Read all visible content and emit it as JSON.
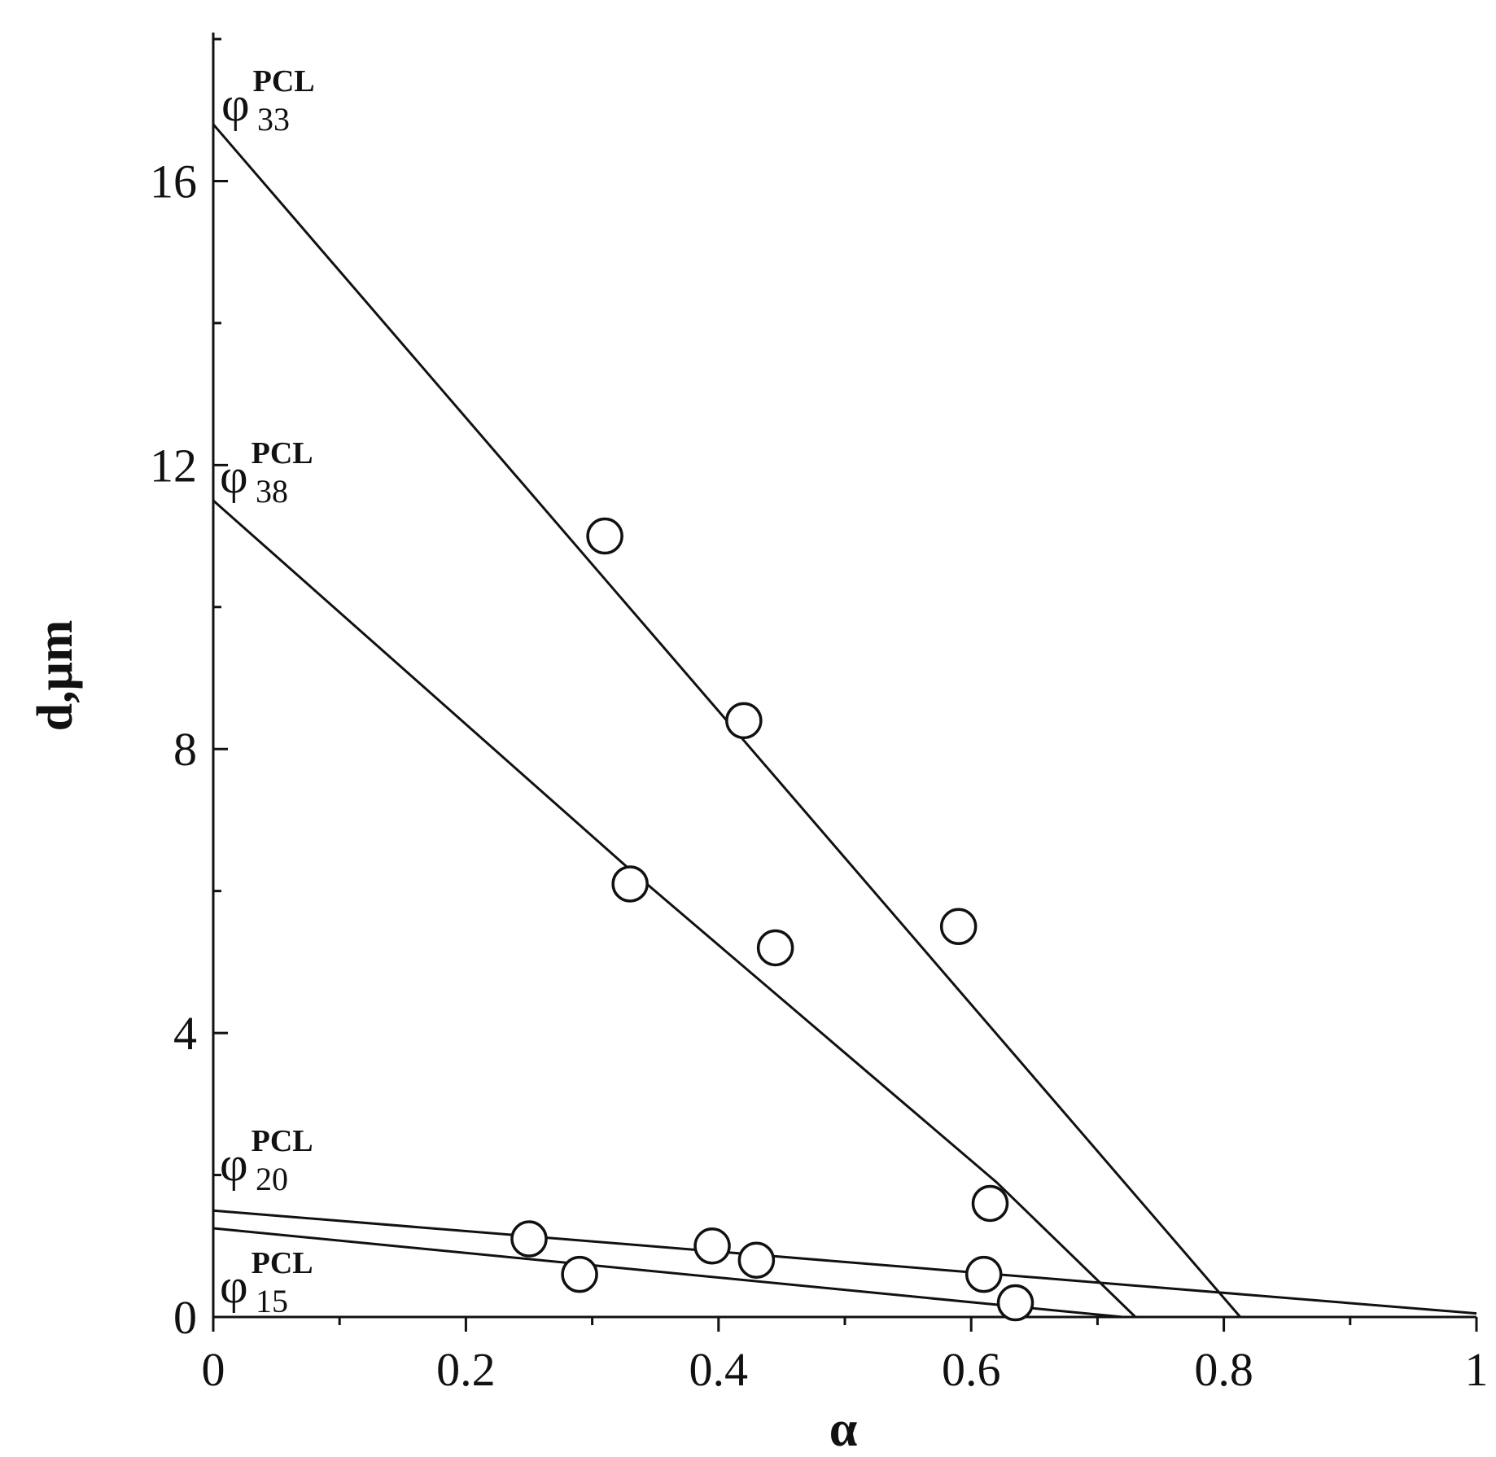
{
  "chart_data": {
    "type": "scatter",
    "xlabel": "α",
    "ylabel": "d,μm",
    "xlim": [
      0,
      1
    ],
    "ylim": [
      0,
      18
    ],
    "x_ticks": [
      0,
      0.2,
      0.4,
      0.6,
      0.8,
      1
    ],
    "x_tick_labels": [
      "0",
      "0.2",
      "0.4",
      "0.6",
      "0.8",
      "1"
    ],
    "y_ticks": [
      0,
      4,
      8,
      12,
      16
    ],
    "y_tick_labels": [
      "0",
      "4",
      "8",
      "12",
      "16"
    ],
    "grid": false,
    "marker": "open-circle",
    "line_color": "#111111",
    "series": [
      {
        "label_main": "φ",
        "label_sup": "PCL",
        "label_sub": "33",
        "points": [
          [
            0.31,
            11.0
          ],
          [
            0.42,
            8.4
          ],
          [
            0.59,
            5.5
          ]
        ],
        "fit_line": [
          [
            0.0,
            16.8
          ],
          [
            0.813,
            0.0
          ]
        ]
      },
      {
        "label_main": "φ",
        "label_sup": "PCL",
        "label_sub": "38",
        "points": [
          [
            0.33,
            6.1
          ],
          [
            0.445,
            5.2
          ],
          [
            0.615,
            1.6
          ]
        ],
        "fit_line": [
          [
            0.0,
            11.5
          ],
          [
            0.33,
            6.3
          ],
          [
            0.62,
            1.9
          ],
          [
            0.73,
            0.0
          ]
        ]
      },
      {
        "label_main": "φ",
        "label_sup": "PCL",
        "label_sub": "20",
        "points": [
          [
            0.25,
            1.1
          ],
          [
            0.395,
            1.0
          ],
          [
            0.61,
            0.6
          ]
        ],
        "fit_line": [
          [
            0.0,
            1.5
          ],
          [
            1.0,
            0.05
          ]
        ]
      },
      {
        "label_main": "φ",
        "label_sup": "PCL",
        "label_sub": "15",
        "points": [
          [
            0.29,
            0.6
          ],
          [
            0.43,
            0.8
          ],
          [
            0.635,
            0.2
          ]
        ],
        "fit_line": [
          [
            0.0,
            1.25
          ],
          [
            0.72,
            0.0
          ]
        ]
      }
    ]
  }
}
